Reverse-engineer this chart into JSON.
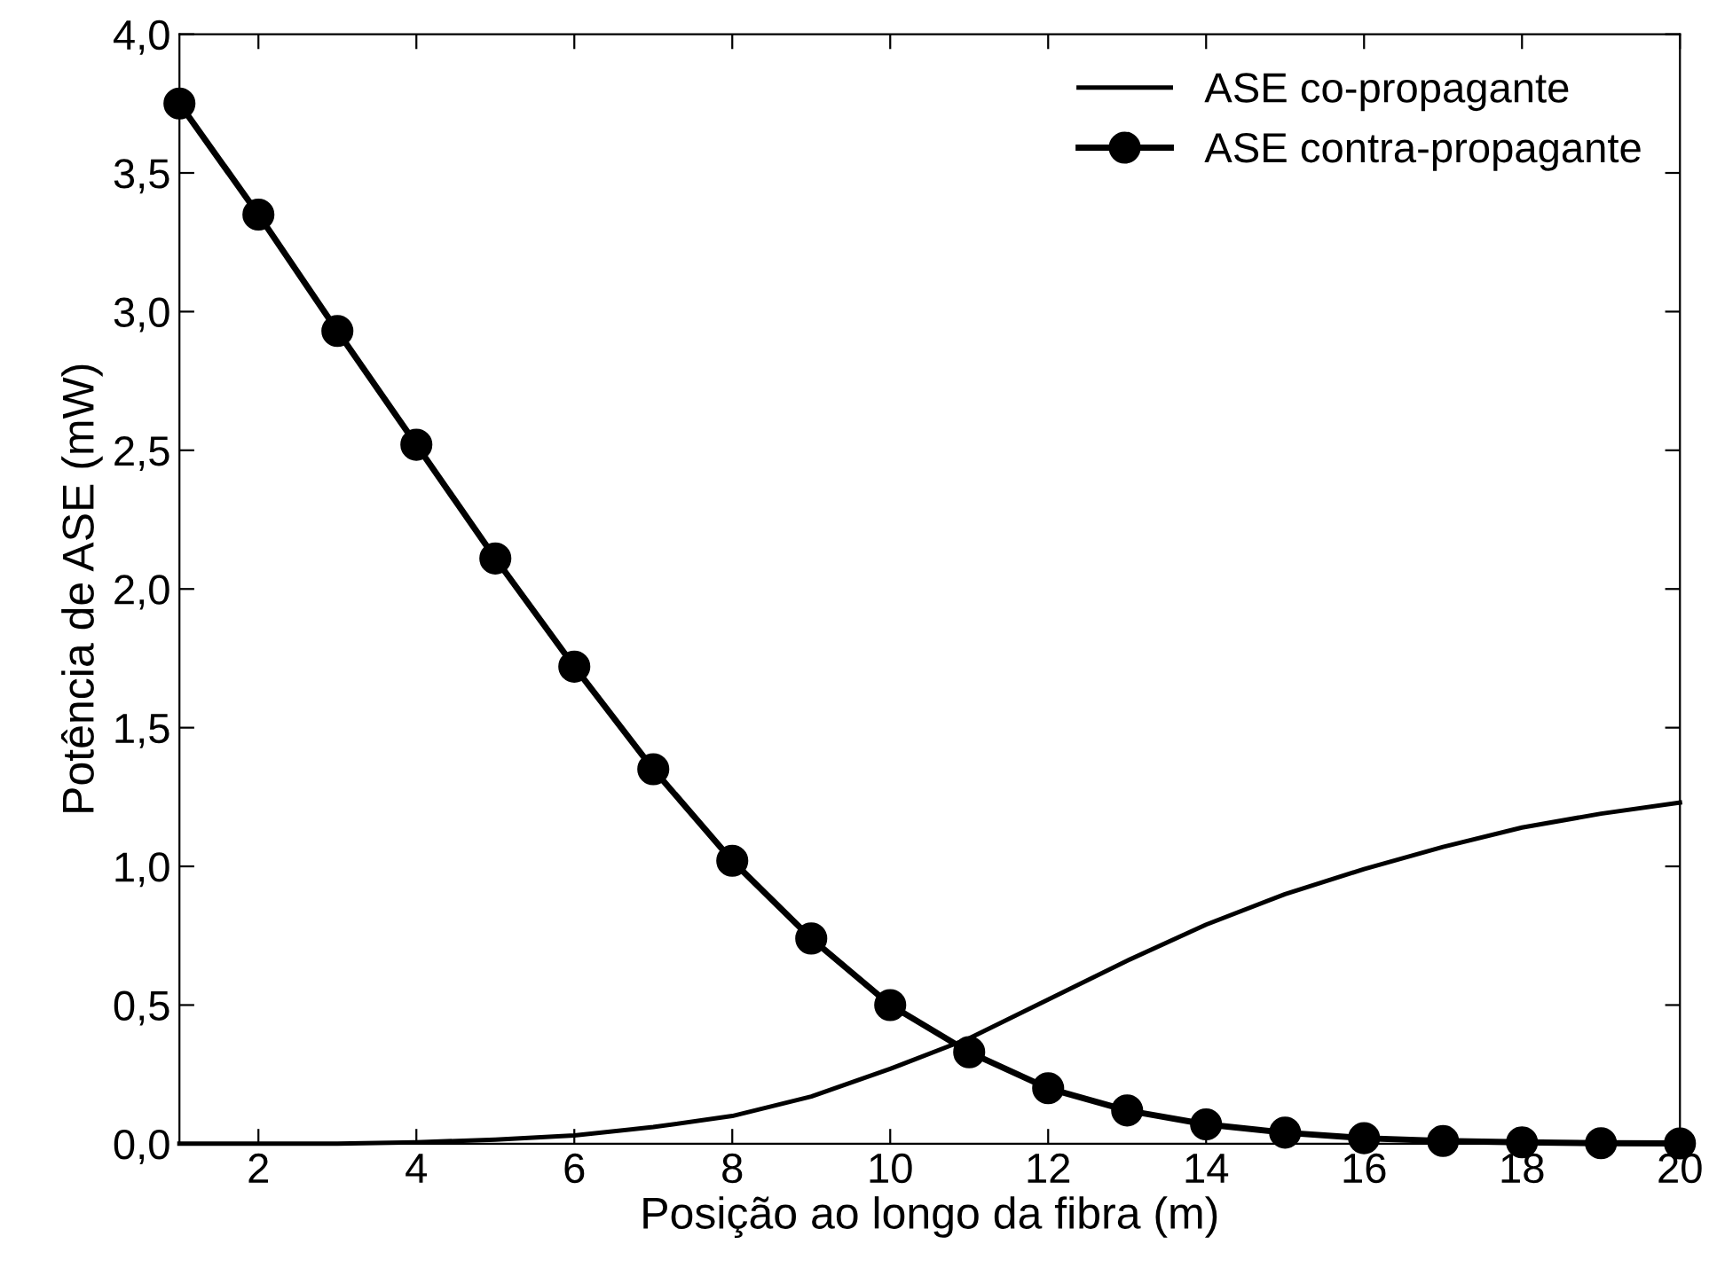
{
  "chart_data": {
    "type": "line",
    "xlabel": "Posição ao longo da fibra (m)",
    "ylabel": "Potência de ASE (mW)",
    "x": [
      1,
      2,
      3,
      4,
      5,
      6,
      7,
      8,
      9,
      10,
      11,
      12,
      13,
      14,
      15,
      16,
      17,
      18,
      19,
      20
    ],
    "series": [
      {
        "name": "ASE co-propagante",
        "color": "#000000",
        "marker": "none",
        "values": [
          0,
          0,
          0,
          0.005,
          0.015,
          0.03,
          0.06,
          0.1,
          0.17,
          0.27,
          0.38,
          0.52,
          0.66,
          0.79,
          0.9,
          0.99,
          1.07,
          1.14,
          1.19,
          1.23
        ]
      },
      {
        "name": "ASE contra-propagante",
        "color": "#000000",
        "marker": "circle",
        "values": [
          3.75,
          3.35,
          2.93,
          2.52,
          2.11,
          1.72,
          1.35,
          1.02,
          0.74,
          0.5,
          0.33,
          0.2,
          0.12,
          0.07,
          0.04,
          0.02,
          0.01,
          0.005,
          0.002,
          0.001
        ]
      }
    ],
    "xlim": [
      1,
      20
    ],
    "ylim": [
      0,
      4
    ],
    "xticks": [
      2,
      4,
      6,
      8,
      10,
      12,
      14,
      16,
      18,
      20
    ],
    "yticks": [
      {
        "value": 0,
        "label": "0,0"
      },
      {
        "value": 0.5,
        "label": "0,5"
      },
      {
        "value": 1,
        "label": "1,0"
      },
      {
        "value": 1.5,
        "label": "1,5"
      },
      {
        "value": 2,
        "label": "2,0"
      },
      {
        "value": 2.5,
        "label": "2,5"
      },
      {
        "value": 3,
        "label": "3,0"
      },
      {
        "value": 3.5,
        "label": "3,5"
      },
      {
        "value": 4,
        "label": "4,0"
      }
    ],
    "legend": "top right",
    "grid": false,
    "line_style": "solid"
  }
}
